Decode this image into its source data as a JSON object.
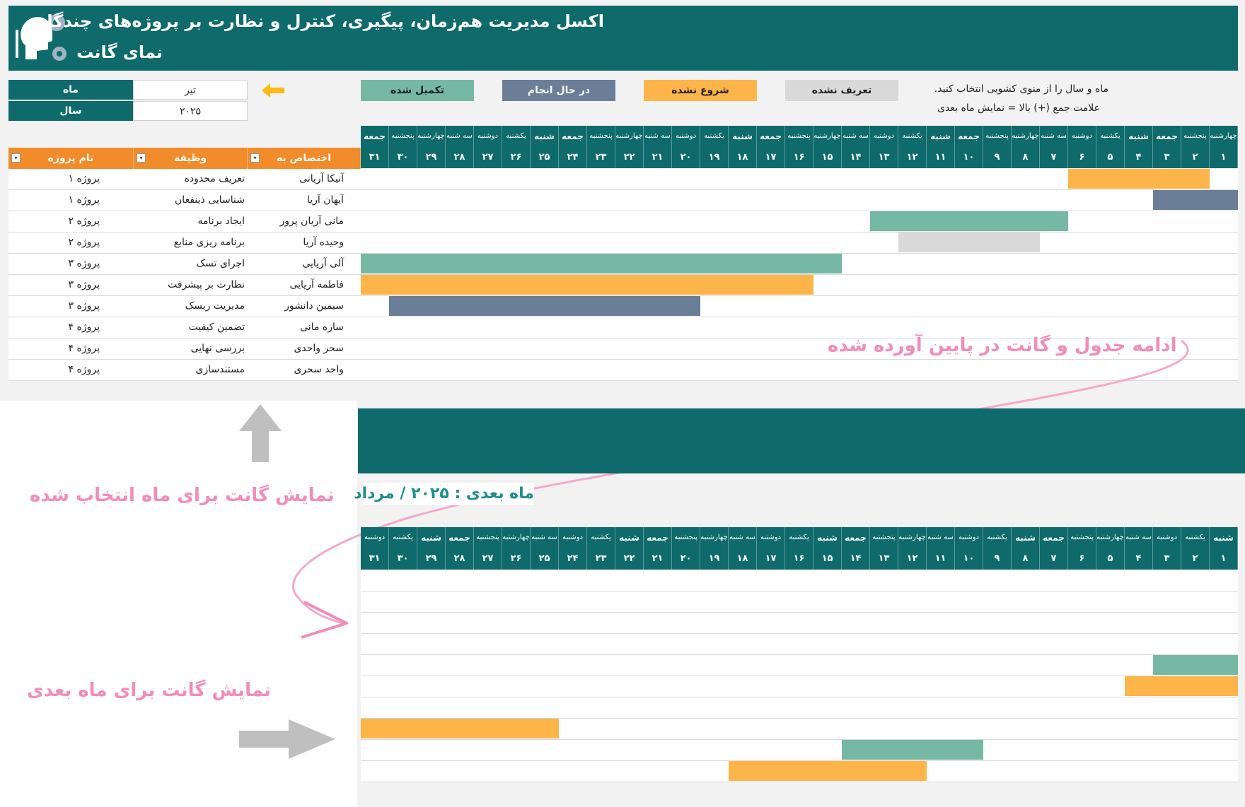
{
  "app": {
    "title_line1": "اکسل مدیریت هم‌زمان، پیگیری، کنترل و نظارت بر پروژه‌های چندگانه",
    "title_line2": "نمای گانت"
  },
  "controls": {
    "month_label": "ماه",
    "month_value": "تیر",
    "year_label": "سال",
    "year_value": "۲۰۲۵"
  },
  "legend": [
    {
      "label": "تکمیل شده",
      "color": "#75b8a3"
    },
    {
      "label": "در حال انجام",
      "color": "#6b7e98"
    },
    {
      "label": "شروع نشده",
      "color": "#fdb54a"
    },
    {
      "label": "تعریف نشده",
      "color": "#d9d9d9"
    }
  ],
  "instructions": {
    "line1": "ماه و سال را از منوی کشویی انتخاب کنید.",
    "line2": "علامت جمع (+) بالا = نمایش ماه بعدی"
  },
  "table": {
    "headers": {
      "project": "نام پروژه",
      "task": "وظیفه",
      "assignee": "اختصاص به"
    },
    "rows": [
      {
        "project": "پروژه ۱",
        "task": "تعریف محدوده",
        "assignee": "آنیکا آریانی"
      },
      {
        "project": "پروژه ۱",
        "task": "شناسایی ذینفعان",
        "assignee": "آیهان آریا"
      },
      {
        "project": "پروژه ۲",
        "task": "ایجاد برنامه",
        "assignee": "مانی آریان پرور"
      },
      {
        "project": "پروژه ۲",
        "task": "برنامه ریزی منابع",
        "assignee": "وحیده آریا"
      },
      {
        "project": "پروژه ۳",
        "task": "اجرای تسک",
        "assignee": "آلی آریایی"
      },
      {
        "project": "پروژه ۳",
        "task": "نظارت بر پیشرفت",
        "assignee": "فاطمه آریایی"
      },
      {
        "project": "پروژه ۳",
        "task": "مدیریت ریسک",
        "assignee": "سیمین دانشور"
      },
      {
        "project": "پروژه ۴",
        "task": "تضمین کیفیت",
        "assignee": "ساره مانی"
      },
      {
        "project": "پروژه ۴",
        "task": "بررسی نهایی",
        "assignee": "سحر واحدی"
      },
      {
        "project": "پروژه ۴",
        "task": "مستندسازی",
        "assignee": "واحد سحری"
      }
    ]
  },
  "gantt_current": {
    "days": [
      "۱",
      "۲",
      "۳",
      "۴",
      "۵",
      "۶",
      "۷",
      "۸",
      "۹",
      "۱۰",
      "۱۱",
      "۱۲",
      "۱۳",
      "۱۴",
      "۱۵",
      "۱۶",
      "۱۷",
      "۱۸",
      "۱۹",
      "۲۰",
      "۲۱",
      "۲۲",
      "۲۳",
      "۲۴",
      "۲۵",
      "۲۶",
      "۲۷",
      "۲۸",
      "۲۹",
      "۳۰",
      "۳۱"
    ],
    "weekdays": [
      "چهارشنبه",
      "پنجشنبه",
      "جمعه",
      "شنبه",
      "یکشنبه",
      "دوشنبه",
      "سه شنبه",
      "چهارشنبه",
      "پنجشنبه",
      "جمعه",
      "شنبه",
      "یکشنبه",
      "دوشنبه",
      "سه شنبه",
      "چهارشنبه",
      "پنجشنبه",
      "جمعه",
      "شنبه",
      "یکشنبه",
      "دوشنبه",
      "سه شنبه",
      "چهارشنبه",
      "پنجشنبه",
      "جمعه",
      "شنبه",
      "یکشنبه",
      "دوشنبه",
      "سه شنبه",
      "چهارشنبه",
      "پنجشنبه",
      "جمعه"
    ],
    "bars": [
      {
        "row": 0,
        "start_day": 2,
        "end_day": 6,
        "color": "#fdb54a"
      },
      {
        "row": 1,
        "start_day": 1,
        "end_day": 3,
        "color": "#6b7e98"
      },
      {
        "row": 2,
        "start_day": 7,
        "end_day": 13,
        "color": "#75b8a3"
      },
      {
        "row": 3,
        "start_day": 8,
        "end_day": 12,
        "color": "#d9d9d9"
      },
      {
        "row": 4,
        "start_day": 15,
        "end_day": 31,
        "color": "#75b8a3"
      },
      {
        "row": 5,
        "start_day": 16,
        "end_day": 31,
        "color": "#fdb54a"
      },
      {
        "row": 6,
        "start_day": 20,
        "end_day": 30,
        "color": "#6b7e98"
      }
    ]
  },
  "gantt_next": {
    "title": "ماه بعدی : ۲۰۲۵ / مرداد",
    "days": [
      "۱",
      "۲",
      "۳",
      "۴",
      "۵",
      "۶",
      "۷",
      "۸",
      "۹",
      "۱۰",
      "۱۱",
      "۱۲",
      "۱۳",
      "۱۴",
      "۱۵",
      "۱۶",
      "۱۷",
      "۱۸",
      "۱۹",
      "۲۰",
      "۲۱",
      "۲۲",
      "۲۳",
      "۲۴",
      "۲۵",
      "۲۶",
      "۲۷",
      "۲۸",
      "۲۹",
      "۳۰",
      "۳۱"
    ],
    "weekdays": [
      "شنبه",
      "یکشنبه",
      "دوشنبه",
      "سه شنبه",
      "چهارشنبه",
      "پنجشنبه",
      "جمعه",
      "شنبه",
      "یکشنبه",
      "دوشنبه",
      "سه شنبه",
      "چهارشنبه",
      "پنجشنبه",
      "جمعه",
      "شنبه",
      "یکشنبه",
      "دوشنبه",
      "سه شنبه",
      "چهارشنبه",
      "پنجشنبه",
      "جمعه",
      "شنبه",
      "یکشنبه",
      "دوشنبه",
      "سه شنبه",
      "چهارشنبه",
      "پنجشنبه",
      "جمعه",
      "شنبه",
      "یکشنبه",
      "دوشنبه"
    ],
    "bars": [
      {
        "row": 4,
        "start_day": 1,
        "end_day": 3,
        "color": "#75b8a3"
      },
      {
        "row": 5,
        "start_day": 1,
        "end_day": 4,
        "color": "#fdb54a"
      },
      {
        "row": 7,
        "start_day": 25,
        "end_day": 31,
        "color": "#fdb54a"
      },
      {
        "row": 8,
        "start_day": 10,
        "end_day": 14,
        "color": "#75b8a3"
      },
      {
        "row": 9,
        "start_day": 12,
        "end_day": 18,
        "color": "#fdb54a"
      }
    ]
  },
  "annotations": {
    "continuation": "ادامه جدول و گانت در پایین آورده شده",
    "selected_month": "نمایش گانت برای ماه  انتخاب شده",
    "next_month": "نمایش گانت برای ماه بعدی"
  },
  "icons": {
    "logo": "gear-head-icon",
    "arrow_left": "arrow-left-icon",
    "arrow_up": "arrow-up-icon",
    "arrow_right": "arrow-right-icon",
    "curve": "curved-arrow-icon",
    "dropdown": "dropdown-icon"
  }
}
